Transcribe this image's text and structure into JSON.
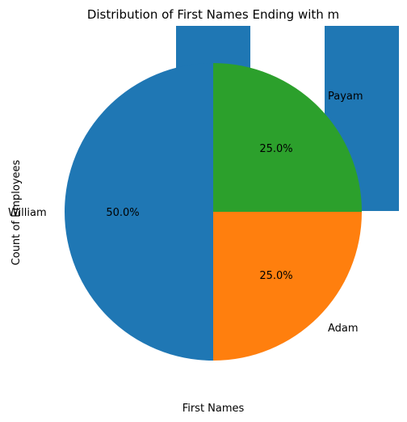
{
  "chart_data": {
    "type": "pie",
    "title": "Distribution of First Names Ending with m",
    "xlabel": "First Names",
    "ylabel": "Count of Employees",
    "categories": [
      "William",
      "Adam",
      "Payam"
    ],
    "values": [
      2,
      1,
      1
    ],
    "percent_labels": [
      "50.0%",
      "25.0%",
      "25.0%"
    ],
    "colors": [
      "#1f77b4",
      "#ff7f0e",
      "#2ca02c"
    ],
    "artifact_bar_color": "#1f77b4"
  }
}
